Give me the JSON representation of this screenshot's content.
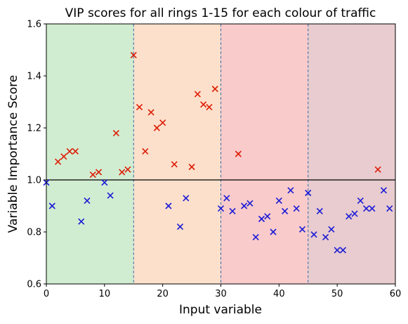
{
  "chart_data": {
    "type": "scatter",
    "title": "VIP scores for all rings 1-15 for each colour of traffic",
    "xlabel": "Input variable",
    "ylabel": "Variable Importance Score",
    "xlim": [
      0,
      60
    ],
    "ylim": [
      0.6,
      1.6
    ],
    "xticks": [
      0,
      10,
      20,
      30,
      40,
      50,
      60
    ],
    "yticks": [
      0.6,
      0.8,
      1.0,
      1.2,
      1.4,
      1.6
    ],
    "xtick_labels": [
      "0",
      "10",
      "20",
      "30",
      "40",
      "50",
      "60"
    ],
    "ytick_labels": [
      "0.6",
      "0.8",
      "1.0",
      "1.2",
      "1.4",
      "1.6"
    ],
    "reference_line": 1.0,
    "region_boundaries": [
      15,
      30,
      45
    ],
    "regions": [
      {
        "from": 0,
        "to": 15,
        "color": "#d1edd1"
      },
      {
        "from": 15,
        "to": 30,
        "color": "#fde0cb"
      },
      {
        "from": 30,
        "to": 45,
        "color": "#f9cbcb"
      },
      {
        "from": 45,
        "to": 60,
        "color": "#e8cccf"
      }
    ],
    "grid": false,
    "series": [
      {
        "color": "#dd1c05",
        "marker": "x",
        "points": [
          [
            2,
            1.07
          ],
          [
            3,
            1.09
          ],
          [
            4,
            1.11
          ],
          [
            5,
            1.11
          ],
          [
            8,
            1.02
          ],
          [
            9,
            1.03
          ],
          [
            12,
            1.18
          ],
          [
            13,
            1.03
          ],
          [
            14,
            1.04
          ],
          [
            15,
            1.48
          ],
          [
            16,
            1.28
          ],
          [
            17,
            1.11
          ],
          [
            18,
            1.26
          ],
          [
            19,
            1.2
          ],
          [
            20,
            1.22
          ],
          [
            22,
            1.06
          ],
          [
            25,
            1.05
          ],
          [
            26,
            1.33
          ],
          [
            27,
            1.29
          ],
          [
            28,
            1.28
          ],
          [
            29,
            1.35
          ],
          [
            33,
            1.1
          ],
          [
            57,
            1.04
          ]
        ]
      },
      {
        "color": "#1a1ad6",
        "marker": "x",
        "points": [
          [
            0,
            0.99
          ],
          [
            1,
            0.9
          ],
          [
            6,
            0.84
          ],
          [
            7,
            0.92
          ],
          [
            10,
            0.99
          ],
          [
            11,
            0.94
          ],
          [
            21,
            0.9
          ],
          [
            23,
            0.82
          ],
          [
            24,
            0.93
          ],
          [
            30,
            0.89
          ],
          [
            31,
            0.93
          ],
          [
            32,
            0.88
          ],
          [
            34,
            0.9
          ],
          [
            35,
            0.91
          ],
          [
            36,
            0.78
          ],
          [
            37,
            0.85
          ],
          [
            38,
            0.86
          ],
          [
            39,
            0.8
          ],
          [
            40,
            0.92
          ],
          [
            41,
            0.88
          ],
          [
            42,
            0.96
          ],
          [
            43,
            0.89
          ],
          [
            44,
            0.81
          ],
          [
            45,
            0.95
          ],
          [
            46,
            0.79
          ],
          [
            47,
            0.88
          ],
          [
            48,
            0.78
          ],
          [
            49,
            0.81
          ],
          [
            50,
            0.73
          ],
          [
            51,
            0.73
          ],
          [
            52,
            0.86
          ],
          [
            53,
            0.87
          ],
          [
            54,
            0.92
          ],
          [
            55,
            0.89
          ],
          [
            56,
            0.89
          ],
          [
            58,
            0.96
          ],
          [
            59,
            0.89
          ]
        ]
      }
    ]
  }
}
